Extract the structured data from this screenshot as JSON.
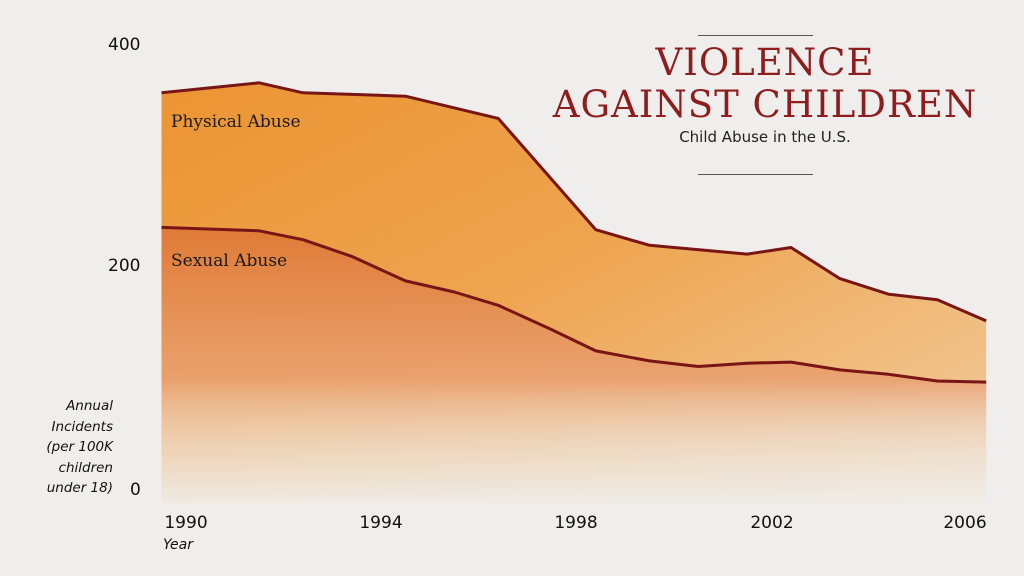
{
  "title_line1": "VIOLENCE",
  "title_line2": "AGAINST CHILDREN",
  "subtitle": "Child Abuse in the U.S.",
  "chart_data": {
    "type": "area",
    "title": "VIOLENCE AGAINST CHILDREN",
    "subtitle": "Child Abuse in the U.S.",
    "xlabel": "Year",
    "ylabel": "Annual Incidents (per 100K children under 18)",
    "ylabel_lines": [
      "Annual",
      "Incidents",
      "(per 100K",
      "children",
      "under 18)"
    ],
    "xlim": [
      1989.6,
      2006.5
    ],
    "ylim": [
      0,
      400
    ],
    "x_ticks": [
      "1990",
      "1994",
      "1998",
      "2002",
      "2006"
    ],
    "y_ticks": [
      "0",
      "200",
      "400"
    ],
    "grid": false,
    "series": [
      {
        "name": "Physical Abuse",
        "color": "#e8952f",
        "line_color": "#7a1515",
        "x": [
          1989.6,
          1991.6,
          1992.5,
          1994.6,
          1996.5,
          1998.5,
          1999.6,
          2001.6,
          2002.5,
          2003.5,
          2004.5,
          2005.5,
          2006.5
        ],
        "values": [
          357,
          366,
          357,
          354,
          334,
          234,
          220,
          212,
          218,
          190,
          176,
          171,
          152
        ]
      },
      {
        "name": "Sexual Abuse",
        "color": "#dd7a35",
        "line_color": "#7a1515",
        "x": [
          1989.6,
          1991.6,
          1992.5,
          1993.5,
          1994.6,
          1995.6,
          1996.5,
          1997.6,
          1998.5,
          1999.6,
          2000.6,
          2001.6,
          2002.5,
          2003.5,
          2004.5,
          2005.5,
          2006.5
        ],
        "values": [
          236,
          233,
          225,
          210,
          188,
          178,
          166,
          144,
          125,
          116,
          111,
          114,
          115,
          108,
          104,
          98,
          97
        ]
      }
    ]
  }
}
